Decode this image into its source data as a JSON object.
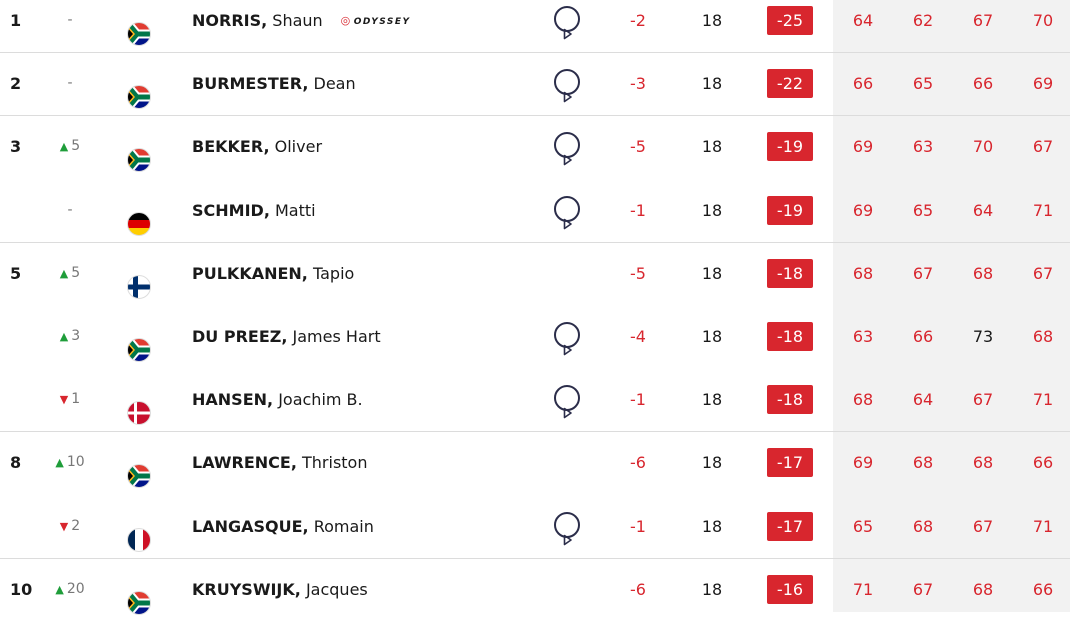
{
  "leaderboard": {
    "score_color": "#d8262e",
    "rows": [
      {
        "pos": 1,
        "move": "-",
        "last": "NORRIS,",
        "first": "Shaun",
        "sponsor": "ODYSSEY",
        "today": -2,
        "thru": 18,
        "total": -25,
        "rounds": [
          64,
          62,
          67,
          70
        ]
      },
      {
        "pos": 2,
        "move": "-",
        "last": "BURMESTER,",
        "first": "Dean",
        "today": -3,
        "thru": 18,
        "total": -22,
        "rounds": [
          66,
          65,
          66,
          69
        ]
      },
      {
        "pos": 3,
        "move": {
          "dir": "up",
          "value": 5
        },
        "last": "BEKKER,",
        "first": "Oliver",
        "today": -5,
        "thru": 18,
        "total": -19,
        "rounds": [
          69,
          63,
          70,
          67
        ]
      },
      {
        "pos": null,
        "move": "-",
        "last": "SCHMID,",
        "first": "Matti",
        "today": -1,
        "thru": 18,
        "total": -19,
        "rounds": [
          69,
          65,
          64,
          71
        ]
      },
      {
        "pos": 5,
        "move": {
          "dir": "up",
          "value": 5
        },
        "last": "PULKKANEN,",
        "first": "Tapio",
        "today": -5,
        "thru": 18,
        "total": -18,
        "rounds": [
          68,
          67,
          68,
          67
        ]
      },
      {
        "pos": null,
        "move": {
          "dir": "up",
          "value": 3
        },
        "last": "DU PREEZ,",
        "first": "James Hart",
        "today": -4,
        "thru": 18,
        "total": -18,
        "rounds": [
          63,
          66,
          {
            "value": 73,
            "color": "#1a1a1a"
          },
          68
        ]
      },
      {
        "pos": null,
        "move": {
          "dir": "down",
          "value": 1
        },
        "last": "HANSEN,",
        "first": "Joachim B.",
        "today": -1,
        "thru": 18,
        "total": -18,
        "rounds": [
          68,
          64,
          67,
          71
        ]
      },
      {
        "pos": 8,
        "move": {
          "dir": "up",
          "value": 10
        },
        "last": "LAWRENCE,",
        "first": "Thriston",
        "today": -6,
        "thru": 18,
        "total": -17,
        "rounds": [
          69,
          68,
          68,
          66
        ]
      },
      {
        "pos": null,
        "move": {
          "dir": "down",
          "value": 2
        },
        "last": "LANGASQUE,",
        "first": "Romain",
        "today": -1,
        "thru": 18,
        "total": -17,
        "rounds": [
          65,
          68,
          67,
          71
        ]
      },
      {
        "pos": 10,
        "move": {
          "dir": "up",
          "value": 20
        },
        "last": "KRUYSWIJK,",
        "first": "Jacques",
        "today": -6,
        "thru": 18,
        "total": -16,
        "rounds": [
          71,
          67,
          68,
          66
        ]
      }
    ]
  }
}
